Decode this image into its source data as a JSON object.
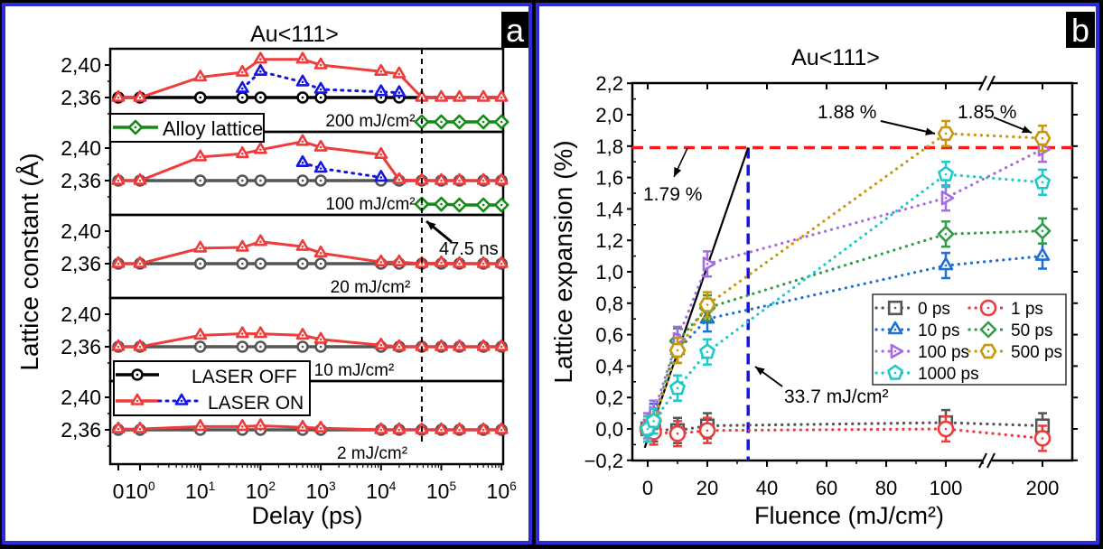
{
  "chart_data": [
    {
      "type": "line",
      "panel_label": "a",
      "title": "Au<111>",
      "xlabel": "Delay (ps)",
      "ylabel": "Lattice constant (Å)",
      "x_scale": "log (with 0 point)",
      "x_ticks": [
        "0",
        "10^0",
        "10^1",
        "10^2",
        "10^3",
        "10^4",
        "10^5",
        "10^6"
      ],
      "y_ticks": [
        "2,40",
        "2,36"
      ],
      "ylim": [
        2.318,
        2.42
      ],
      "marker_line": {
        "x": 47500,
        "label": "47.5 ns"
      },
      "x": [
        0,
        1,
        10,
        50,
        100,
        500,
        1000,
        10000,
        20000,
        47500,
        100000,
        200000,
        500000,
        1000000
      ],
      "legends": {
        "alloy": "Alloy lattice",
        "laser_off": "LASER OFF",
        "laser_on": "LASER ON"
      },
      "colors": {
        "laser_off": "#000000",
        "laser_off_faded": "#555555",
        "laser_on": "#ee3b3b",
        "laser_on_blue": "#1414e6",
        "alloy": "#138a13"
      },
      "subpanels": [
        {
          "fluence_label": "200 mJ/cm²",
          "laser_off": [
            2.36,
            2.36,
            2.36,
            2.36,
            2.36,
            2.36,
            2.36,
            2.36,
            2.36,
            2.36,
            2.36,
            2.36,
            2.36,
            2.36
          ],
          "laser_on": [
            2.36,
            2.36,
            2.385,
            2.391,
            2.407,
            2.407,
            2.4,
            2.392,
            2.389,
            2.36,
            2.36,
            2.36,
            2.36,
            2.36
          ],
          "laser_on_blue": {
            "x": [
              50,
              100,
              500,
              1000,
              10000,
              20000
            ],
            "y": [
              2.371,
              2.392,
              2.379,
              2.37,
              2.367,
              2.366
            ]
          },
          "alloy": {
            "x": [
              47500,
              100000,
              200000,
              500000,
              1000000
            ],
            "y": [
              2.33,
              2.33,
              2.33,
              2.33,
              2.33
            ]
          }
        },
        {
          "fluence_label": "100 mJ/cm²",
          "laser_off": [
            2.36,
            2.36,
            2.36,
            2.36,
            2.36,
            2.36,
            2.36,
            2.36,
            2.36,
            2.36,
            2.36,
            2.36,
            2.36,
            2.36
          ],
          "laser_on": [
            2.36,
            2.36,
            2.389,
            2.393,
            2.398,
            2.408,
            2.401,
            2.392,
            2.361,
            2.36,
            2.36,
            2.36,
            2.36,
            2.36
          ],
          "laser_on_blue": {
            "x": [
              500,
              1000,
              10000
            ],
            "y": [
              2.382,
              2.375,
              2.364
            ]
          },
          "alloy": {
            "x": [
              47500,
              100000,
              200000,
              500000,
              1000000
            ],
            "y": [
              2.331,
              2.331,
              2.33,
              2.33,
              2.33
            ]
          }
        },
        {
          "fluence_label": "20 mJ/cm²",
          "laser_off": [
            2.36,
            2.36,
            2.36,
            2.36,
            2.36,
            2.36,
            2.36,
            2.36,
            2.36,
            2.36,
            2.36,
            2.36,
            2.36,
            2.36
          ],
          "laser_on": [
            2.36,
            2.36,
            2.379,
            2.38,
            2.387,
            2.381,
            2.373,
            2.362,
            2.362,
            2.36,
            2.361,
            2.36,
            2.36,
            2.36
          ]
        },
        {
          "fluence_label": "10 mJ/cm²",
          "laser_off": [
            2.36,
            2.36,
            2.36,
            2.36,
            2.36,
            2.36,
            2.36,
            2.36,
            2.36,
            2.36,
            2.36,
            2.36,
            2.36,
            2.36
          ],
          "laser_on": [
            2.36,
            2.36,
            2.374,
            2.376,
            2.376,
            2.374,
            2.369,
            2.362,
            2.36,
            2.36,
            2.36,
            2.36,
            2.36,
            2.36
          ]
        },
        {
          "fluence_label": "2 mJ/cm²",
          "laser_off": [
            2.36,
            2.36,
            2.36,
            2.36,
            2.36,
            2.36,
            2.36,
            2.36,
            2.36,
            2.36,
            2.36,
            2.36,
            2.36,
            2.36
          ],
          "laser_on": [
            2.361,
            2.361,
            2.364,
            2.364,
            2.365,
            2.363,
            2.362,
            2.36,
            2.36,
            2.36,
            2.36,
            2.36,
            2.36,
            2.36
          ]
        }
      ]
    },
    {
      "type": "line",
      "panel_label": "b",
      "title": "Au<111>",
      "xlabel": "Fluence (mJ/cm²)",
      "ylabel": "Lattice expansion (%)",
      "x_ticks": [
        "0",
        "20",
        "40",
        "60",
        "80",
        "100",
        "200"
      ],
      "y_ticks": [
        "2,2",
        "2,0",
        "1,8",
        "1,6",
        "1,4",
        "1,2",
        "1,0",
        "0,8",
        "0,6",
        "0,4",
        "0,2",
        "0,0",
        "−0,2"
      ],
      "ylim": [
        -0.2,
        2.2
      ],
      "x_break": [
        110,
        190
      ],
      "x": [
        0,
        2,
        10,
        20,
        100,
        200
      ],
      "error": 0.08,
      "series": [
        {
          "name": "0 ps",
          "marker": "square",
          "color": "#555555",
          "values": [
            0.0,
            0.0,
            -0.01,
            0.02,
            0.04,
            0.02
          ]
        },
        {
          "name": "1 ps",
          "marker": "circle",
          "color": "#ee3b3b",
          "values": [
            0.0,
            -0.02,
            -0.03,
            -0.01,
            0.0,
            -0.06
          ]
        },
        {
          "name": "10 ps",
          "marker": "triangle-up",
          "color": "#1f6fd6",
          "values": [
            0.0,
            0.08,
            0.5,
            0.7,
            1.04,
            1.1
          ]
        },
        {
          "name": "50 ps",
          "marker": "diamond",
          "color": "#2e9e48",
          "values": [
            0.0,
            0.05,
            0.56,
            0.77,
            1.24,
            1.26
          ]
        },
        {
          "name": "100 ps",
          "marker": "triangle-right",
          "color": "#a56be0",
          "values": [
            0.02,
            0.1,
            0.57,
            1.05,
            1.47,
            1.78
          ]
        },
        {
          "name": "500 ps",
          "marker": "hexagon",
          "color": "#c9960a",
          "values": [
            0.0,
            0.05,
            0.5,
            0.79,
            1.88,
            1.85
          ]
        },
        {
          "name": "1000 ps",
          "marker": "pentagon",
          "color": "#1ec9c9",
          "values": [
            0.0,
            0.05,
            0.26,
            0.49,
            1.62,
            1.57
          ]
        }
      ],
      "threshold": {
        "value": 1.79,
        "label": "1.79 %",
        "color": "#ff1a1a"
      },
      "fluence_threshold": {
        "value": 33.7,
        "label": "33.7 mJ/cm²",
        "color": "#1414e6"
      },
      "fit_line": {
        "x": [
          -1,
          33.7
        ],
        "y": [
          -0.12,
          1.79
        ]
      },
      "annotations": [
        {
          "label": "1.88 %",
          "x": 100,
          "y": 1.88
        },
        {
          "label": "1.85 %",
          "x": 200,
          "y": 1.85
        }
      ],
      "legend_position": "lower-right"
    }
  ]
}
